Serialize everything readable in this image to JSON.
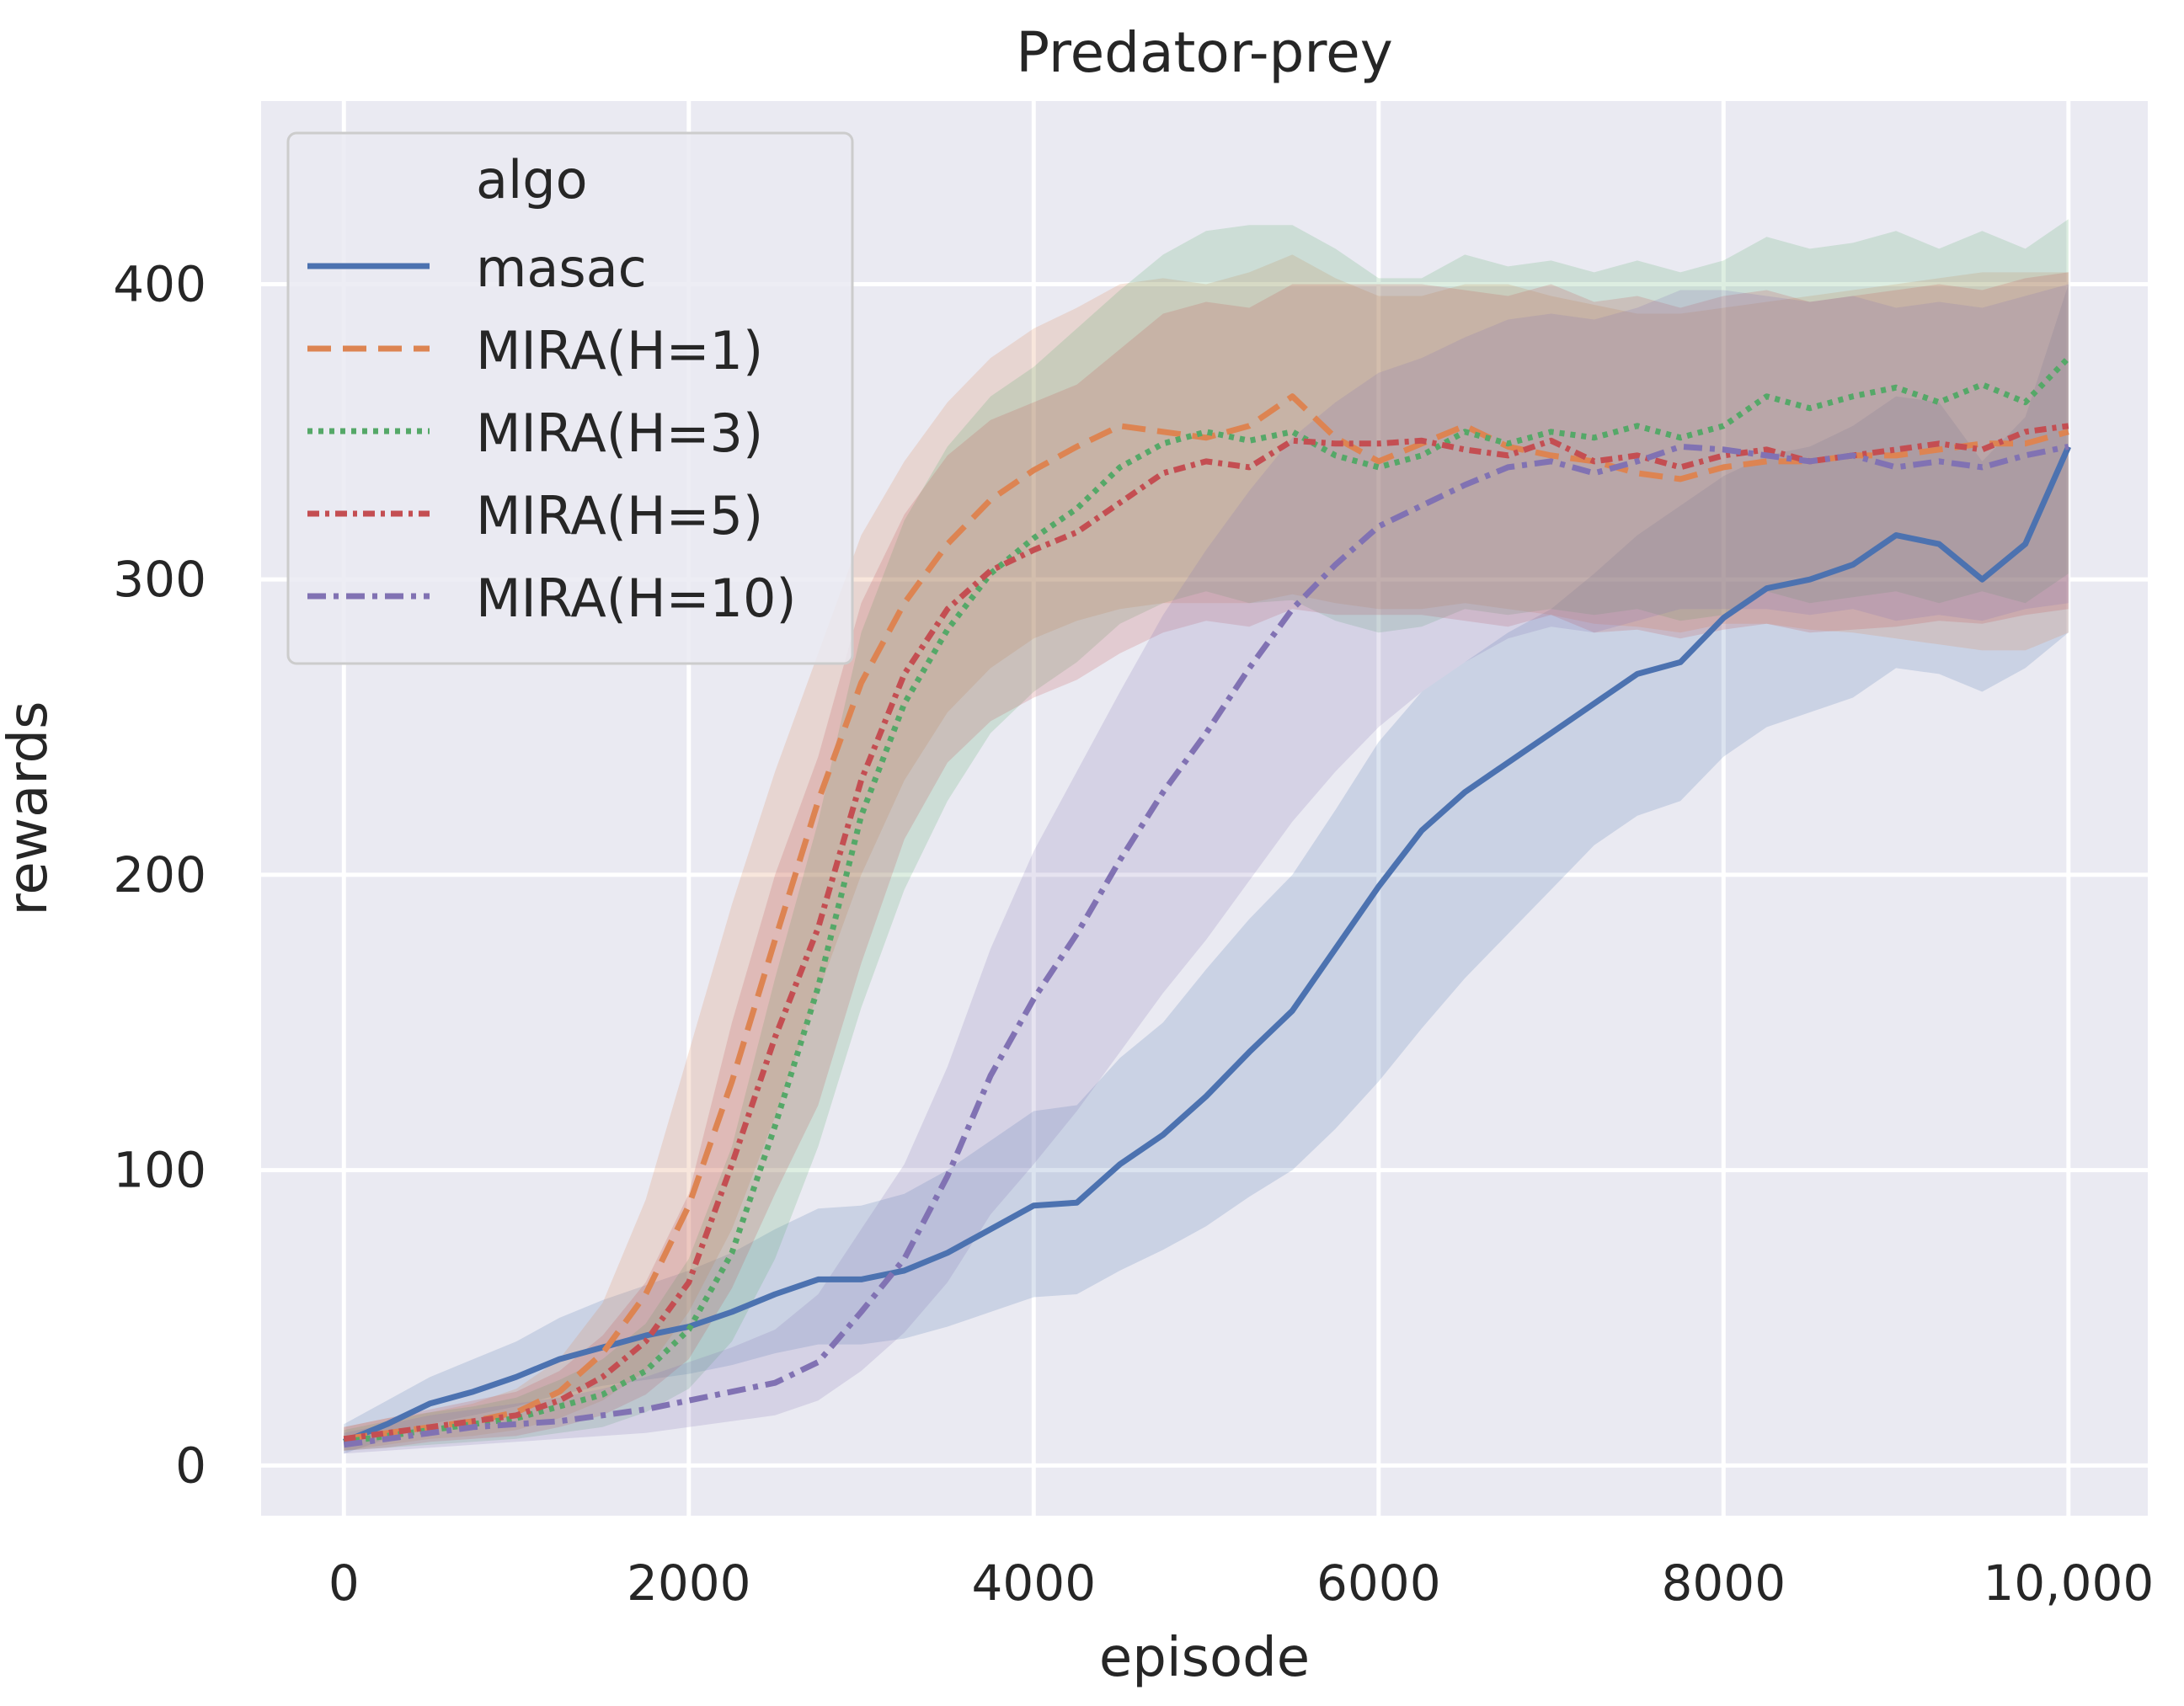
{
  "chart_data": {
    "type": "line",
    "title": "Predator-prey",
    "xlabel": "episode",
    "ylabel": "rewards",
    "xlim": [
      -480,
      10460
    ],
    "ylim": [
      -17,
      462
    ],
    "xticks": [
      0,
      2000,
      4000,
      6000,
      8000,
      10000
    ],
    "xtick_labels": [
      "0",
      "2000",
      "4000",
      "6000",
      "8000",
      "10,000"
    ],
    "yticks": [
      0,
      100,
      200,
      300,
      400
    ],
    "ytick_labels": [
      "0",
      "100",
      "200",
      "300",
      "400"
    ],
    "grid": true,
    "legend": {
      "title": "algo",
      "position": "top-left"
    },
    "series": [
      {
        "name": "masac",
        "color": "#4c72b0",
        "dash": "solid",
        "x": [
          0,
          250,
          500,
          750,
          1000,
          1250,
          1500,
          1750,
          2000,
          2250,
          2500,
          2750,
          3000,
          3250,
          3500,
          3750,
          4000,
          4250,
          4500,
          4750,
          5000,
          5250,
          5500,
          5750,
          6000,
          6250,
          6500,
          6750,
          7000,
          7250,
          7500,
          7750,
          8000,
          8250,
          8500,
          8750,
          9000,
          9250,
          9500,
          9750,
          10000
        ],
        "y": [
          8,
          14,
          21,
          25,
          30,
          36,
          40,
          44,
          47,
          52,
          58,
          63,
          63,
          66,
          72,
          80,
          88,
          89,
          102,
          112,
          125,
          140,
          154,
          175,
          196,
          215,
          228,
          238,
          248,
          258,
          268,
          272,
          287,
          297,
          300,
          305,
          315,
          312,
          300,
          312,
          345
        ],
        "lower": [
          4,
          9,
          14,
          17,
          20,
          24,
          27,
          29,
          31,
          34,
          38,
          41,
          41,
          43,
          47,
          52,
          57,
          58,
          66,
          73,
          81,
          91,
          100,
          114,
          130,
          148,
          165,
          180,
          195,
          210,
          220,
          225,
          240,
          250,
          255,
          260,
          270,
          268,
          262,
          270,
          282
        ],
        "upper": [
          14,
          22,
          30,
          36,
          42,
          50,
          56,
          61,
          66,
          72,
          80,
          87,
          88,
          92,
          100,
          110,
          120,
          122,
          138,
          150,
          168,
          185,
          200,
          222,
          245,
          262,
          272,
          282,
          290,
          302,
          315,
          325,
          335,
          342,
          345,
          352,
          362,
          360,
          340,
          355,
          400
        ]
      },
      {
        "name": "MIRA(H=1)",
        "color": "#dd8452",
        "dash": "28 14",
        "x": [
          0,
          250,
          500,
          750,
          1000,
          1250,
          1500,
          1750,
          2000,
          2250,
          2500,
          2750,
          3000,
          3250,
          3500,
          3750,
          4000,
          4250,
          4500,
          4750,
          5000,
          5250,
          5500,
          5750,
          6000,
          6250,
          6500,
          6750,
          7000,
          7250,
          7500,
          7750,
          8000,
          8250,
          8500,
          8750,
          9000,
          9250,
          9500,
          9750,
          10000
        ],
        "y": [
          9,
          11,
          13,
          15,
          18,
          25,
          38,
          58,
          88,
          130,
          178,
          225,
          265,
          292,
          312,
          327,
          337,
          345,
          352,
          350,
          348,
          352,
          362,
          348,
          340,
          346,
          352,
          345,
          342,
          340,
          336,
          334,
          338,
          340,
          340,
          342,
          342,
          344,
          346,
          346,
          350
        ],
        "lower": [
          5,
          7,
          9,
          10,
          12,
          16,
          22,
          32,
          52,
          80,
          118,
          160,
          200,
          232,
          255,
          270,
          280,
          286,
          290,
          292,
          292,
          292,
          295,
          292,
          290,
          290,
          292,
          290,
          288,
          285,
          284,
          282,
          285,
          285,
          283,
          282,
          280,
          278,
          276,
          276,
          282
        ],
        "upper": [
          13,
          16,
          18,
          21,
          26,
          36,
          55,
          90,
          140,
          190,
          235,
          275,
          315,
          340,
          360,
          375,
          385,
          392,
          400,
          402,
          400,
          404,
          410,
          402,
          396,
          396,
          400,
          400,
          396,
          393,
          390,
          390,
          392,
          394,
          396,
          398,
          400,
          402,
          404,
          404,
          404
        ]
      },
      {
        "name": "MIRA(H=3)",
        "color": "#55a868",
        "dash": "6 7",
        "x": [
          0,
          250,
          500,
          750,
          1000,
          1250,
          1500,
          1750,
          2000,
          2250,
          2500,
          2750,
          3000,
          3250,
          3500,
          3750,
          4000,
          4250,
          4500,
          4750,
          5000,
          5250,
          5500,
          5750,
          6000,
          6250,
          6500,
          6750,
          7000,
          7250,
          7500,
          7750,
          8000,
          8250,
          8500,
          8750,
          9000,
          9250,
          9500,
          9750,
          10000
        ],
        "y": [
          8,
          10,
          12,
          14,
          16,
          20,
          24,
          32,
          46,
          72,
          115,
          162,
          220,
          258,
          283,
          302,
          314,
          324,
          338,
          346,
          350,
          347,
          350,
          342,
          338,
          342,
          350,
          346,
          350,
          348,
          352,
          348,
          352,
          362,
          358,
          362,
          365,
          360,
          366,
          360,
          375
        ],
        "lower": [
          5,
          6,
          7,
          8,
          9,
          11,
          13,
          18,
          26,
          42,
          70,
          108,
          155,
          195,
          225,
          248,
          262,
          272,
          285,
          292,
          296,
          292,
          293,
          286,
          282,
          284,
          290,
          288,
          290,
          288,
          290,
          286,
          288,
          296,
          292,
          294,
          296,
          292,
          296,
          292,
          302
        ],
        "upper": [
          12,
          15,
          18,
          20,
          23,
          29,
          36,
          48,
          70,
          108,
          165,
          218,
          282,
          320,
          345,
          362,
          372,
          385,
          398,
          410,
          418,
          420,
          420,
          412,
          402,
          402,
          410,
          406,
          408,
          404,
          408,
          404,
          408,
          416,
          412,
          414,
          418,
          412,
          418,
          412,
          422
        ]
      },
      {
        "name": "MIRA(H=5)",
        "color": "#c44e52",
        "dash": "14 7 5 7",
        "x": [
          0,
          250,
          500,
          750,
          1000,
          1250,
          1500,
          1750,
          2000,
          2250,
          2500,
          2750,
          3000,
          3250,
          3500,
          3750,
          4000,
          4250,
          4500,
          4750,
          5000,
          5250,
          5500,
          5750,
          6000,
          6250,
          6500,
          6750,
          7000,
          7250,
          7500,
          7750,
          8000,
          8250,
          8500,
          8750,
          9000,
          9250,
          9500,
          9750,
          10000
        ],
        "y": [
          9,
          11,
          13,
          15,
          17,
          22,
          30,
          42,
          62,
          102,
          145,
          182,
          232,
          268,
          290,
          303,
          310,
          316,
          326,
          336,
          340,
          338,
          347,
          346,
          346,
          347,
          344,
          342,
          347,
          340,
          342,
          338,
          342,
          344,
          340,
          342,
          344,
          346,
          344,
          350,
          352
        ],
        "lower": [
          5,
          6,
          8,
          9,
          10,
          13,
          17,
          24,
          36,
          60,
          92,
          122,
          170,
          212,
          238,
          252,
          260,
          266,
          275,
          282,
          286,
          284,
          290,
          288,
          288,
          288,
          286,
          284,
          288,
          282,
          283,
          280,
          283,
          285,
          282,
          283,
          284,
          286,
          285,
          288,
          290
        ],
        "upper": [
          13,
          16,
          19,
          22,
          25,
          32,
          44,
          62,
          92,
          150,
          200,
          240,
          292,
          322,
          342,
          354,
          360,
          366,
          378,
          390,
          394,
          392,
          400,
          400,
          400,
          400,
          398,
          396,
          400,
          394,
          396,
          392,
          396,
          398,
          394,
          396,
          398,
          400,
          398,
          402,
          404
        ]
      },
      {
        "name": "MIRA(H=10)",
        "color": "#8172b3",
        "dash": "22 9 6 9",
        "x": [
          0,
          250,
          500,
          750,
          1000,
          1250,
          1500,
          1750,
          2000,
          2250,
          2500,
          2750,
          3000,
          3250,
          3500,
          3750,
          4000,
          4250,
          4500,
          4750,
          5000,
          5250,
          5500,
          5750,
          6000,
          6250,
          6500,
          6750,
          7000,
          7250,
          7500,
          7750,
          8000,
          8250,
          8500,
          8750,
          9000,
          9250,
          9500,
          9750,
          10000
        ],
        "y": [
          7,
          9,
          11,
          13,
          14,
          15,
          17,
          19,
          22,
          25,
          28,
          35,
          52,
          70,
          98,
          132,
          158,
          180,
          205,
          228,
          248,
          270,
          290,
          305,
          318,
          325,
          332,
          338,
          340,
          336,
          340,
          345,
          344,
          342,
          340,
          342,
          338,
          340,
          338,
          342,
          345
        ],
        "lower": [
          4,
          5,
          6,
          7,
          8,
          9,
          10,
          11,
          13,
          15,
          17,
          22,
          32,
          45,
          62,
          85,
          102,
          120,
          140,
          160,
          178,
          198,
          218,
          235,
          250,
          262,
          272,
          280,
          284,
          282,
          286,
          290,
          290,
          290,
          288,
          290,
          286,
          288,
          286,
          290,
          292
        ],
        "upper": [
          11,
          14,
          17,
          19,
          21,
          23,
          26,
          30,
          35,
          40,
          46,
          58,
          80,
          102,
          135,
          175,
          208,
          235,
          262,
          288,
          310,
          330,
          348,
          360,
          370,
          375,
          382,
          388,
          390,
          388,
          392,
          398,
          398,
          396,
          394,
          396,
          392,
          394,
          392,
          396,
          400
        ]
      }
    ]
  }
}
